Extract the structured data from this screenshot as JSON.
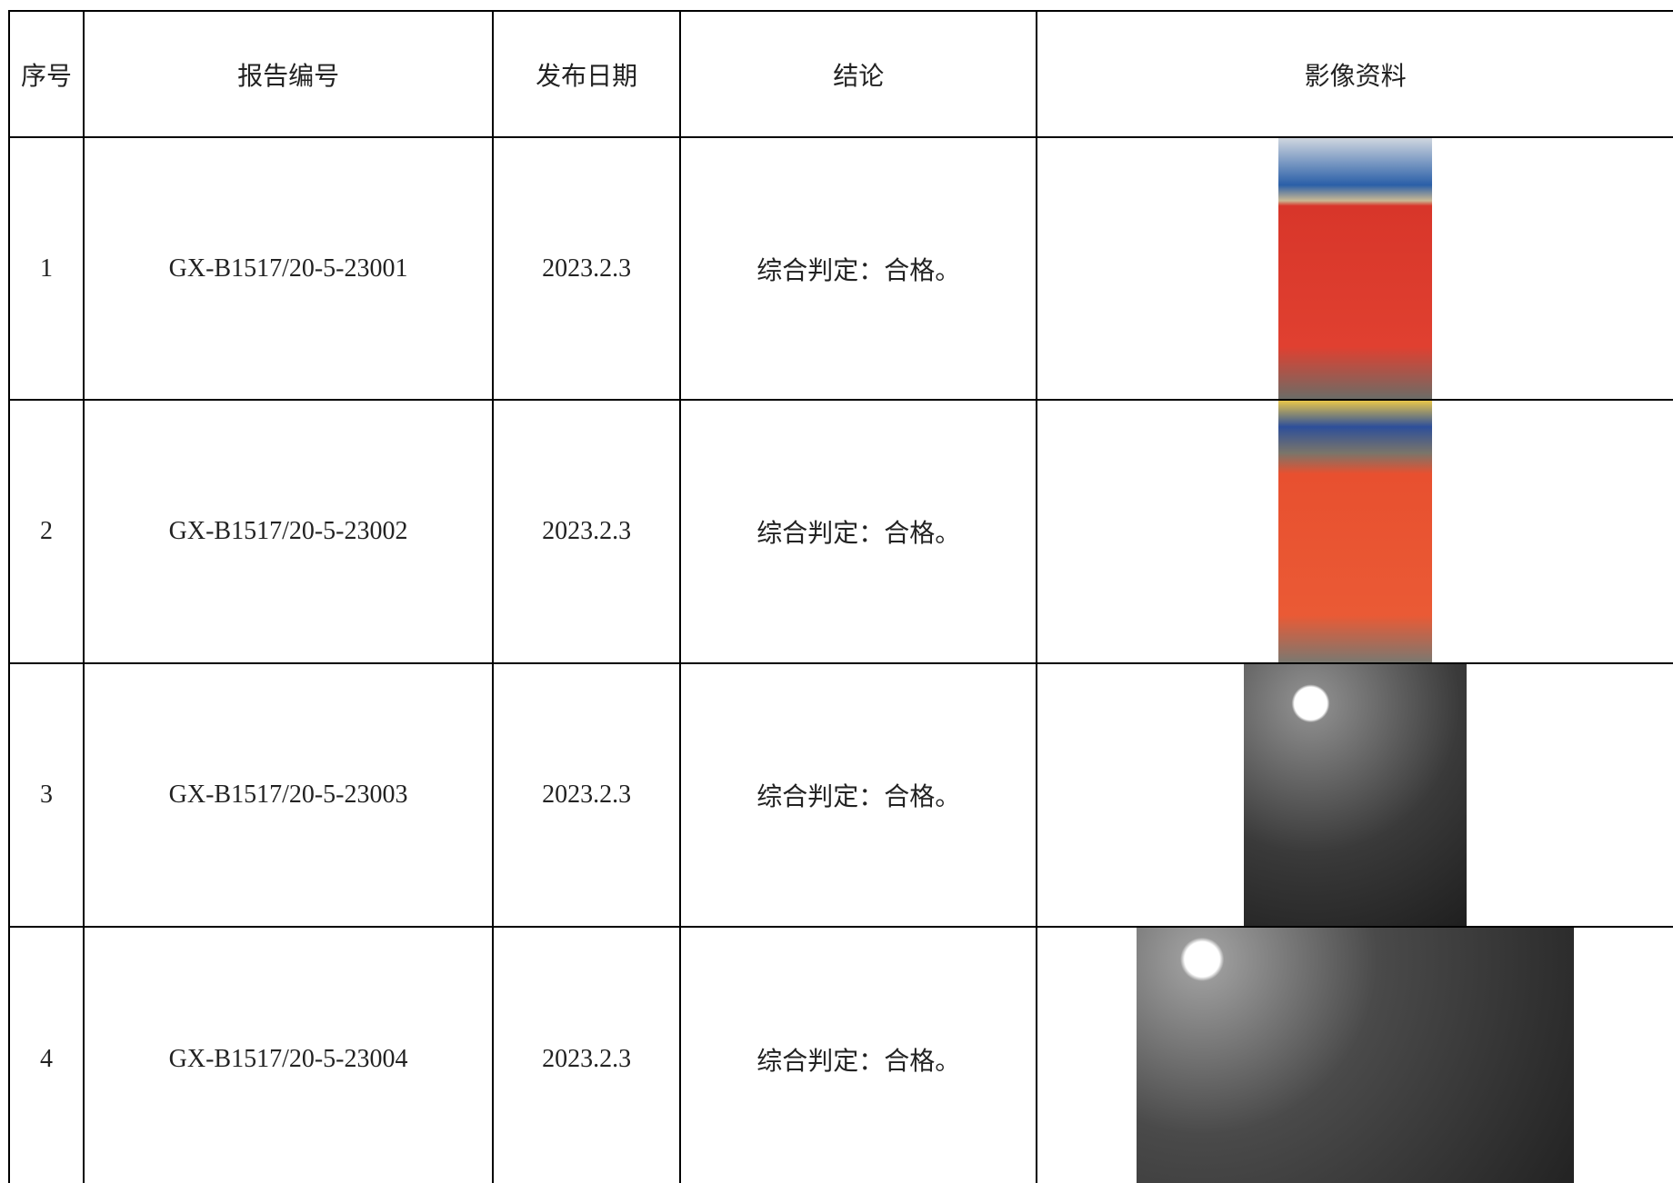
{
  "table": {
    "header": [
      "序号",
      "报告编号",
      "发布日期",
      "结论",
      "影像资料"
    ],
    "rows": [
      [
        "1",
        "GX-B1517/20-5-23001",
        "2023.2.3",
        "综合判定：合格。"
      ],
      [
        "2",
        "GX-B1517/20-5-23002",
        "2023.2.3",
        "综合判定：合格。"
      ],
      [
        "3",
        "GX-B1517/20-5-23003",
        "2023.2.3",
        "综合判定：合格。"
      ],
      [
        "4",
        "GX-B1517/20-5-23004",
        "2023.2.3",
        "综合判定：合格。"
      ]
    ]
  }
}
